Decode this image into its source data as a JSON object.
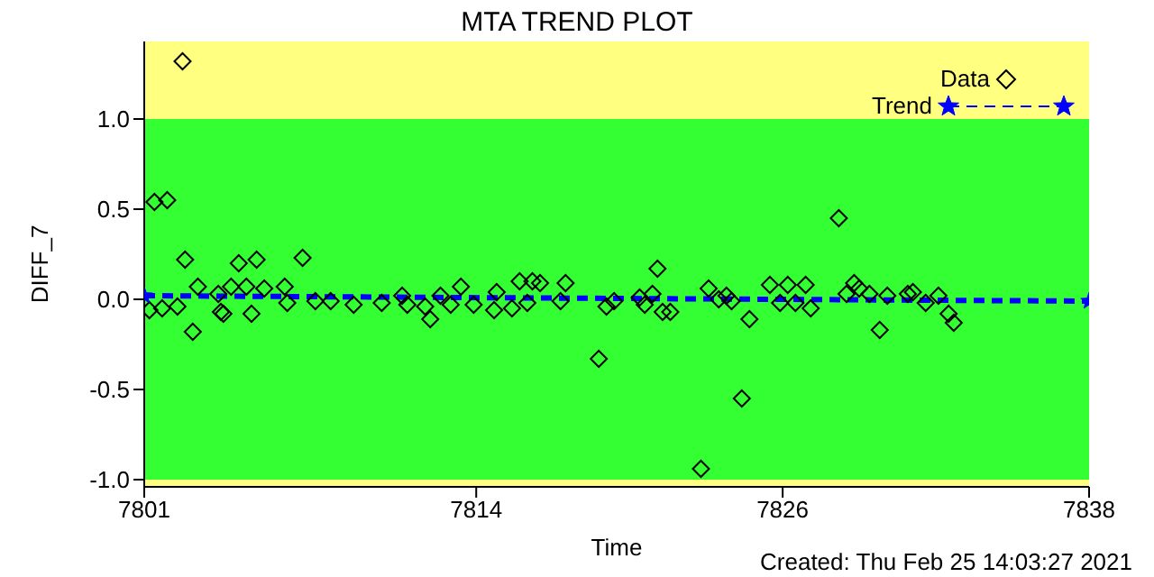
{
  "chart_data": {
    "type": "scatter",
    "title": "MTA TREND PLOT",
    "xlabel": "Time",
    "ylabel": "DIFF_7",
    "annotations": [
      "Created: Thu Feb 25 14:03:27 2021"
    ],
    "xlim": [
      7801,
      7838
    ],
    "xticks": [
      7801,
      7814,
      7826,
      7838
    ],
    "ylim": [
      -1.04,
      1.43
    ],
    "yticks": [
      {
        "value": -1,
        "label": "-1.0"
      },
      -0.5,
      {
        "value": 0,
        "label": "0.0"
      },
      0.5,
      {
        "value": 1,
        "label": "1.0"
      }
    ],
    "grid": false,
    "legend": "top right",
    "bands": [
      {
        "axis": "y",
        "from": -1,
        "to": 1,
        "color": "#33ff33"
      },
      {
        "axis": "y",
        "from": 1,
        "to": 1.43,
        "color": "#ffff80"
      },
      {
        "axis": "y",
        "from": -1.04,
        "to": -1,
        "color": "#ffff80"
      }
    ],
    "series": [
      {
        "name": "Data",
        "marker": "diamond",
        "color": "#000000",
        "x": [
          7801.2,
          7801.4,
          7801.7,
          7801.9,
          7802.3,
          7802.5,
          7802.6,
          7802.9,
          7803.1,
          7803.9,
          7804.0,
          7804.1,
          7804.4,
          7804.7,
          7805.0,
          7805.2,
          7805.4,
          7805.7,
          7806.5,
          7806.6,
          7807.2,
          7807.7,
          7808.3,
          7809.2,
          7810.3,
          7811.1,
          7811.3,
          7812.0,
          7812.2,
          7812.6,
          7813.0,
          7813.4,
          7813.9,
          7814.7,
          7814.8,
          7815.4,
          7815.7,
          7816.0,
          7816.2,
          7816.5,
          7817.3,
          7817.5,
          7818.8,
          7819.1,
          7819.4,
          7820.4,
          7820.6,
          7820.9,
          7821.1,
          7821.3,
          7821.6,
          7822.8,
          7823.1,
          7823.5,
          7823.8,
          7824.0,
          7824.4,
          7824.7,
          7825.5,
          7825.9,
          7826.2,
          7826.5,
          7826.9,
          7827.1,
          7828.2,
          7828.5,
          7828.8,
          7829.0,
          7829.4,
          7829.8,
          7830.1,
          7830.9,
          7831.1,
          7831.6,
          7832.1,
          7832.5,
          7832.7
        ],
        "values": [
          -0.06,
          0.54,
          -0.05,
          0.55,
          -0.04,
          1.32,
          0.22,
          -0.18,
          0.07,
          0.03,
          -0.07,
          -0.08,
          0.07,
          0.2,
          0.07,
          -0.08,
          0.22,
          0.06,
          0.07,
          -0.02,
          0.23,
          -0.01,
          -0.01,
          -0.03,
          -0.02,
          0.02,
          -0.03,
          -0.04,
          -0.11,
          0.02,
          -0.03,
          0.07,
          -0.03,
          -0.06,
          0.04,
          -0.05,
          0.1,
          -0.02,
          0.1,
          0.09,
          -0.01,
          0.09,
          -0.33,
          -0.04,
          -0.01,
          0.01,
          -0.03,
          0.03,
          0.17,
          -0.07,
          -0.07,
          -0.94,
          0.06,
          0.0,
          0.02,
          -0.01,
          -0.55,
          -0.11,
          0.08,
          -0.02,
          0.08,
          -0.02,
          0.08,
          -0.05,
          0.45,
          0.03,
          0.09,
          0.06,
          0.03,
          -0.17,
          0.02,
          0.03,
          0.04,
          -0.02,
          0.02,
          -0.08,
          -0.13
        ]
      },
      {
        "name": "Trend",
        "type": "line",
        "marker": "star",
        "line_style": "dashed",
        "color": "#0000ff",
        "x": [
          7801,
          7838
        ],
        "values": [
          0.02,
          -0.01
        ]
      }
    ]
  }
}
